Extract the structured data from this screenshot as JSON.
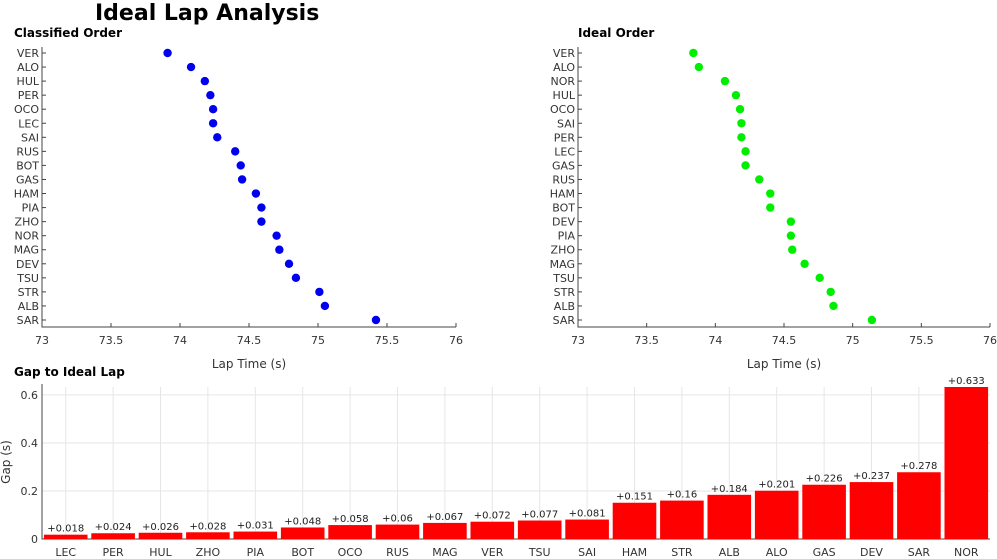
{
  "title": "Ideal Lap Analysis",
  "chart_data": [
    {
      "type": "scatter",
      "title": "Classified Order",
      "xlabel": "Lap Time (s)",
      "ylabel": "",
      "xlim": [
        73,
        76
      ],
      "xticks": [
        "73",
        "73.5",
        "74",
        "74.5",
        "75",
        "75.5",
        "76"
      ],
      "marker_color": "#0000ee",
      "grid": false,
      "points": [
        {
          "driver": "VER",
          "x": 73.91
        },
        {
          "driver": "ALO",
          "x": 74.08
        },
        {
          "driver": "HUL",
          "x": 74.18
        },
        {
          "driver": "PER",
          "x": 74.22
        },
        {
          "driver": "OCO",
          "x": 74.24
        },
        {
          "driver": "LEC",
          "x": 74.24
        },
        {
          "driver": "SAI",
          "x": 74.27
        },
        {
          "driver": "RUS",
          "x": 74.4
        },
        {
          "driver": "BOT",
          "x": 74.44
        },
        {
          "driver": "GAS",
          "x": 74.45
        },
        {
          "driver": "HAM",
          "x": 74.55
        },
        {
          "driver": "PIA",
          "x": 74.59
        },
        {
          "driver": "ZHO",
          "x": 74.59
        },
        {
          "driver": "NOR",
          "x": 74.7
        },
        {
          "driver": "MAG",
          "x": 74.72
        },
        {
          "driver": "DEV",
          "x": 74.79
        },
        {
          "driver": "TSU",
          "x": 74.84
        },
        {
          "driver": "STR",
          "x": 75.01
        },
        {
          "driver": "ALB",
          "x": 75.05
        },
        {
          "driver": "SAR",
          "x": 75.42
        }
      ]
    },
    {
      "type": "scatter",
      "title": "Ideal Order",
      "xlabel": "Lap Time (s)",
      "ylabel": "",
      "xlim": [
        73,
        76
      ],
      "xticks": [
        "73",
        "73.5",
        "74",
        "74.5",
        "75",
        "75.5",
        "76"
      ],
      "marker_color": "#00ee00",
      "grid": false,
      "points": [
        {
          "driver": "VER",
          "x": 73.84
        },
        {
          "driver": "ALO",
          "x": 73.88
        },
        {
          "driver": "NOR",
          "x": 74.07
        },
        {
          "driver": "HUL",
          "x": 74.15
        },
        {
          "driver": "OCO",
          "x": 74.18
        },
        {
          "driver": "SAI",
          "x": 74.19
        },
        {
          "driver": "PER",
          "x": 74.19
        },
        {
          "driver": "LEC",
          "x": 74.22
        },
        {
          "driver": "GAS",
          "x": 74.22
        },
        {
          "driver": "RUS",
          "x": 74.32
        },
        {
          "driver": "HAM",
          "x": 74.4
        },
        {
          "driver": "BOT",
          "x": 74.4
        },
        {
          "driver": "DEV",
          "x": 74.55
        },
        {
          "driver": "PIA",
          "x": 74.55
        },
        {
          "driver": "ZHO",
          "x": 74.56
        },
        {
          "driver": "MAG",
          "x": 74.65
        },
        {
          "driver": "TSU",
          "x": 74.76
        },
        {
          "driver": "STR",
          "x": 74.84
        },
        {
          "driver": "ALB",
          "x": 74.86
        },
        {
          "driver": "SAR",
          "x": 75.14
        }
      ]
    },
    {
      "type": "bar",
      "title": "Gap to Ideal Lap",
      "xlabel": "",
      "ylabel": "Gap (s)",
      "ylim": [
        0,
        0.633
      ],
      "yticks": [
        "0",
        "0.2",
        "0.4",
        "0.6"
      ],
      "bar_color": "#ff0000",
      "grid": true,
      "categories": [
        "LEC",
        "PER",
        "HUL",
        "ZHO",
        "PIA",
        "BOT",
        "OCO",
        "RUS",
        "MAG",
        "VER",
        "TSU",
        "SAI",
        "HAM",
        "STR",
        "ALB",
        "ALO",
        "GAS",
        "DEV",
        "SAR",
        "NOR"
      ],
      "values": [
        0.018,
        0.024,
        0.026,
        0.028,
        0.031,
        0.048,
        0.058,
        0.06,
        0.067,
        0.072,
        0.077,
        0.081,
        0.151,
        0.16,
        0.184,
        0.201,
        0.226,
        0.237,
        0.278,
        0.633
      ],
      "data_labels": [
        "+0.018",
        "+0.024",
        "+0.026",
        "+0.028",
        "+0.031",
        "+0.048",
        "+0.058",
        "+0.06",
        "+0.067",
        "+0.072",
        "+0.077",
        "+0.081",
        "+0.151",
        "+0.16",
        "+0.184",
        "+0.201",
        "+0.226",
        "+0.237",
        "+0.278",
        "+0.633"
      ]
    }
  ]
}
